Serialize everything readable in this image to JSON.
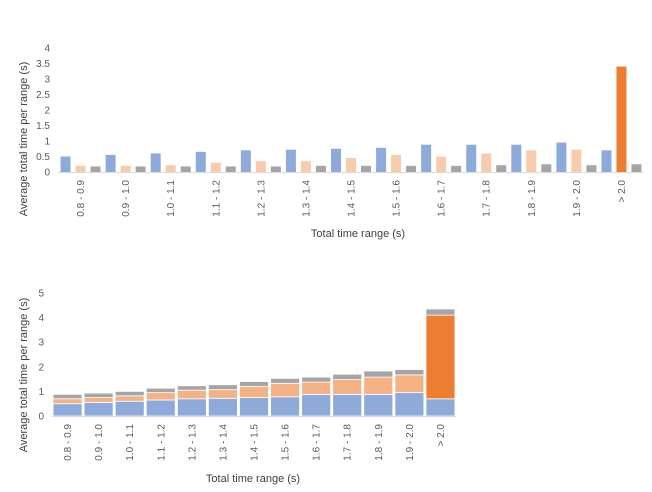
{
  "colors": {
    "series_blue": "#8eaadb",
    "series_light_orange": "#f8cbad",
    "series_gray": "#a5a5a5",
    "highlight_orange": "#ed7d31",
    "stack_light_orange": "#f4b183",
    "axis": "#d9d9d9"
  },
  "chart_data": [
    {
      "type": "bar",
      "categories": [
        "0.8 - 0.9",
        "0.9 - 1.0",
        "1.0 - 1.1",
        "1.1 - 1.2",
        "1.2 - 1.3",
        "1.3 - 1.4",
        "1.4 - 1.5",
        "1.5 - 1.6",
        "1.6 - 1.7",
        "1.7 - 1.8",
        "1.8 - 1.9",
        "1.9 - 2.0",
        "> 2.0"
      ],
      "series": [
        {
          "values": [
            0.5,
            0.55,
            0.6,
            0.65,
            0.7,
            0.72,
            0.75,
            0.78,
            0.88,
            0.88,
            0.88,
            0.95,
            0.7
          ],
          "color": "#8eaadb"
        },
        {
          "values": [
            0.2,
            0.2,
            0.22,
            0.3,
            0.35,
            0.35,
            0.45,
            0.55,
            0.5,
            0.6,
            0.7,
            0.72,
            3.4
          ],
          "color": "#f8cbad",
          "highlight": {
            "index": 12,
            "color": "#ed7d31"
          }
        },
        {
          "values": [
            0.18,
            0.18,
            0.18,
            0.18,
            0.18,
            0.2,
            0.2,
            0.2,
            0.2,
            0.22,
            0.25,
            0.22,
            0.25
          ],
          "color": "#a5a5a5"
        }
      ],
      "xlabel": "Total time range (s)",
      "ylabel": "Average total time per range (s)",
      "yticks": [
        "0",
        "0.5",
        "1",
        "1.5",
        "2",
        "2.5",
        "3",
        "3.5",
        "4"
      ],
      "ylim": [
        0,
        4
      ],
      "grid": false,
      "legend": "none"
    },
    {
      "type": "bar",
      "stacked": true,
      "categories": [
        "0.8 - 0.9",
        "0.9 - 1.0",
        "1.0 - 1.1",
        "1.1 - 1.2",
        "1.2 - 1.3",
        "1.3 - 1.4",
        "1.4 - 1.5",
        "1.5 - 1.6",
        "1.6 - 1.7",
        "1.7 - 1.8",
        "1.8 - 1.9",
        "1.9 - 2.0",
        "> 2.0"
      ],
      "series": [
        {
          "values": [
            0.5,
            0.55,
            0.6,
            0.65,
            0.7,
            0.72,
            0.75,
            0.78,
            0.88,
            0.88,
            0.88,
            0.95,
            0.7
          ],
          "color": "#8eaadb"
        },
        {
          "values": [
            0.2,
            0.2,
            0.22,
            0.3,
            0.35,
            0.35,
            0.45,
            0.55,
            0.5,
            0.6,
            0.7,
            0.72,
            3.4
          ],
          "color": "#f4b183",
          "highlight": {
            "index": 12,
            "color": "#ed7d31"
          }
        },
        {
          "values": [
            0.18,
            0.18,
            0.18,
            0.18,
            0.18,
            0.2,
            0.2,
            0.2,
            0.2,
            0.22,
            0.25,
            0.22,
            0.25
          ],
          "color": "#a5a5a5"
        }
      ],
      "xlabel": "Total time range (s)",
      "ylabel": "Average total time per range (s)",
      "yticks": [
        "0",
        "1",
        "2",
        "3",
        "4",
        "5"
      ],
      "ylim": [
        0,
        5
      ],
      "grid": false,
      "legend": "none"
    }
  ]
}
